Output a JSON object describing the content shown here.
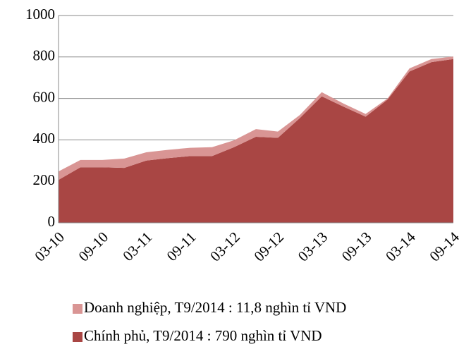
{
  "chart_data": {
    "type": "stacked_area",
    "categories": [
      "03-10",
      null,
      "09-10",
      null,
      "03-11",
      null,
      "09-11",
      null,
      "03-12",
      null,
      "09-12",
      null,
      "03-13",
      null,
      "09-13",
      null,
      "03-14",
      null,
      "09-14"
    ],
    "series": [
      {
        "name": "Doanh nghiệp, T9/2014 : 11,8 nghìn tỉ VND",
        "color": "#d99594",
        "values": [
          41,
          35,
          35,
          45,
          40,
          40,
          40,
          43,
          33,
          37,
          30,
          15,
          20,
          15,
          13,
          5,
          15,
          15,
          11.8
        ]
      },
      {
        "name": "Chính phủ, T9/2014 : 790 nghìn tỉ VND",
        "color": "#a94644",
        "values": [
          207,
          268,
          268,
          265,
          300,
          312,
          322,
          322,
          365,
          415,
          410,
          505,
          610,
          560,
          512,
          595,
          730,
          775,
          790
        ]
      }
    ],
    "ylim": [
      0,
      1000
    ],
    "yticks": [
      0,
      200,
      400,
      600,
      800,
      1000
    ],
    "grid": true
  }
}
